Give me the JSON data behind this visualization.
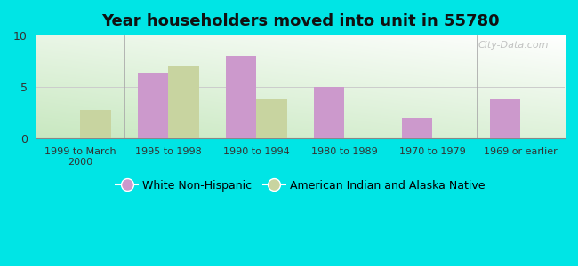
{
  "title": "Year householders moved into unit in 55780",
  "categories": [
    "1999 to March\n2000",
    "1995 to 1998",
    "1990 to 1994",
    "1980 to 1989",
    "1970 to 1979",
    "1969 or earlier"
  ],
  "white_non_hispanic": [
    0,
    6.4,
    8.0,
    5.0,
    2.0,
    3.8
  ],
  "american_indian": [
    2.8,
    7.0,
    3.8,
    0,
    0,
    0
  ],
  "white_color": "#cc99cc",
  "indian_color": "#c8d4a0",
  "background_outer": "#00e5e5",
  "gradient_bottom": "#c8e8c0",
  "gradient_top": "#f0f8f0",
  "ylim": [
    0,
    10
  ],
  "yticks": [
    0,
    5,
    10
  ],
  "bar_width": 0.35,
  "legend_white": "White Non-Hispanic",
  "legend_indian": "American Indian and Alaska Native",
  "watermark": "City-Data.com"
}
